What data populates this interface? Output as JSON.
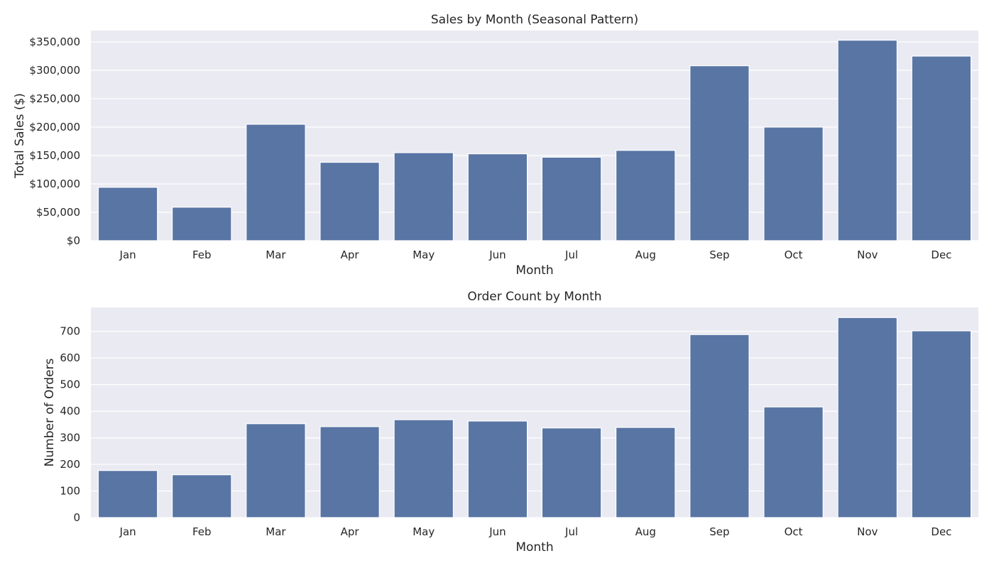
{
  "colors": {
    "bar": "#5975a4",
    "plot_background": "#eaeaf2",
    "grid": "#ffffff",
    "text": "#262626"
  },
  "chart_data": [
    {
      "type": "bar",
      "title": "Sales by Month (Seasonal Pattern)",
      "xlabel": "Month",
      "ylabel": "Total Sales ($)",
      "categories": [
        "Jan",
        "Feb",
        "Mar",
        "Apr",
        "May",
        "Jun",
        "Jul",
        "Aug",
        "Sep",
        "Oct",
        "Nov",
        "Dec"
      ],
      "values": [
        94000,
        59000,
        205000,
        138000,
        155000,
        153000,
        147000,
        159000,
        308000,
        200000,
        353000,
        325000
      ],
      "ylim": [
        0,
        370000
      ],
      "yticks": [
        0,
        50000,
        100000,
        150000,
        200000,
        250000,
        300000,
        350000
      ],
      "ytick_labels": [
        "$0",
        "$50,000",
        "$100,000",
        "$150,000",
        "$200,000",
        "$250,000",
        "$300,000",
        "$350,000"
      ],
      "grid": true,
      "legend": false
    },
    {
      "type": "bar",
      "title": "Order Count by Month",
      "xlabel": "Month",
      "ylabel": "Number of Orders",
      "categories": [
        "Jan",
        "Feb",
        "Mar",
        "Apr",
        "May",
        "Jun",
        "Jul",
        "Aug",
        "Sep",
        "Oct",
        "Nov",
        "Dec"
      ],
      "values": [
        177,
        161,
        353,
        342,
        368,
        363,
        337,
        339,
        688,
        416,
        752,
        702
      ],
      "ylim": [
        0,
        790
      ],
      "yticks": [
        0,
        100,
        200,
        300,
        400,
        500,
        600,
        700
      ],
      "ytick_labels": [
        "0",
        "100",
        "200",
        "300",
        "400",
        "500",
        "600",
        "700"
      ],
      "grid": true,
      "legend": false
    }
  ]
}
